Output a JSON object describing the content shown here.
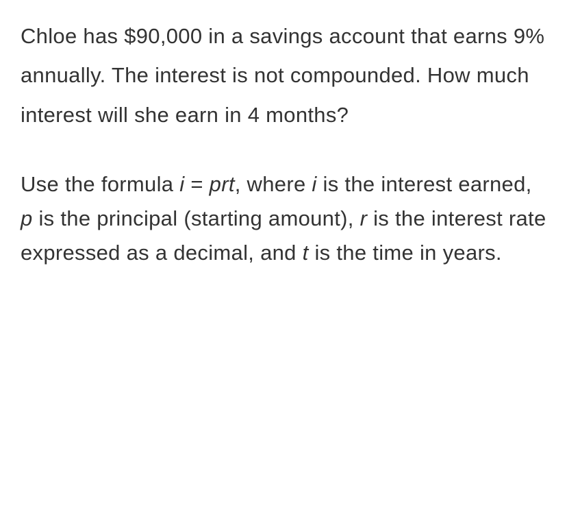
{
  "problem": {
    "p1_part1": "Chloe has $90,000 in a savings account that earns 9% annually. The interest is not compounded. How much interest will she earn in 4 months?",
    "p2_t1": "Use the formula ",
    "p2_i1": "i",
    "p2_t2": " = ",
    "p2_i2": "prt",
    "p2_t3": ", where ",
    "p2_i3": "i",
    "p2_t4": " is the interest earned, ",
    "p2_i4": "p",
    "p2_t5": " is the principal (starting amount), ",
    "p2_i5": "r",
    "p2_t6": " is the interest rate expressed as a decimal, and ",
    "p2_i6": "t",
    "p2_t7": " is the time in years."
  },
  "styling": {
    "background_color": "#ffffff",
    "text_color": "#333333",
    "font_size": 31,
    "line_height_p1": 1.85,
    "line_height_p2": 1.62,
    "font_family": "Arial, Helvetica, sans-serif"
  }
}
